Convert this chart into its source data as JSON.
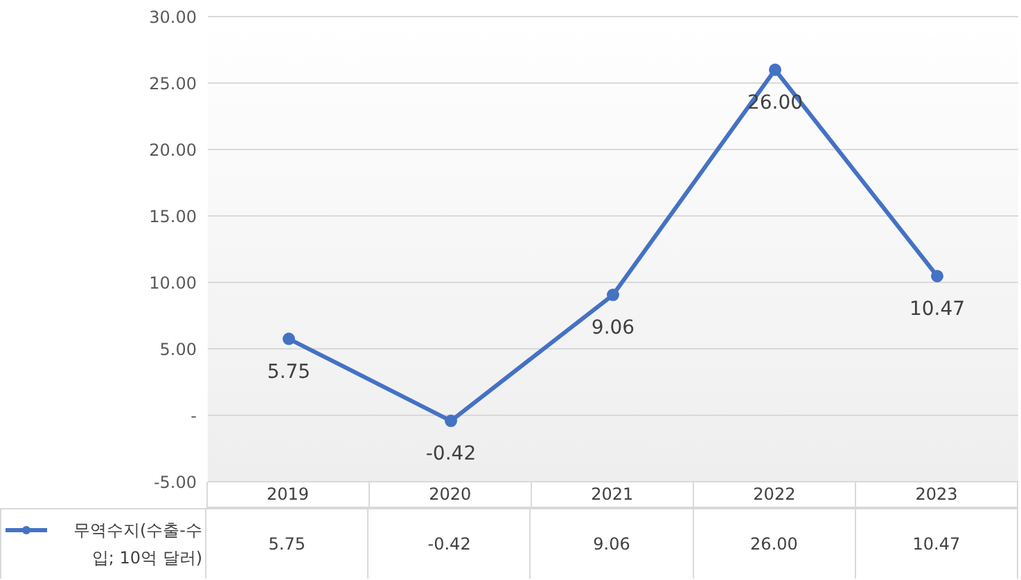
{
  "chart_data": {
    "type": "line",
    "categories": [
      "2019",
      "2020",
      "2021",
      "2022",
      "2023"
    ],
    "series": [
      {
        "name": "무역수지(수출-수입; 10억 달러)",
        "color": "#4472c4",
        "values": [
          5.75,
          -0.42,
          9.06,
          26.0,
          10.47
        ],
        "value_labels": [
          "5.75",
          "-0.42",
          "9.06",
          "26.00",
          "10.47"
        ]
      }
    ],
    "ylim": [
      -5,
      30
    ],
    "yticks": [
      {
        "value": -5,
        "label": "-5.00"
      },
      {
        "value": 0,
        "label": "-"
      },
      {
        "value": 5,
        "label": "5.00"
      },
      {
        "value": 10,
        "label": "10.00"
      },
      {
        "value": 15,
        "label": "15.00"
      },
      {
        "value": 20,
        "label": "20.00"
      },
      {
        "value": 25,
        "label": "25.00"
      },
      {
        "value": 30,
        "label": "30.00"
      }
    ],
    "grid": "y",
    "marker": "circle",
    "line_style": "solid",
    "legend": "bottom left"
  }
}
